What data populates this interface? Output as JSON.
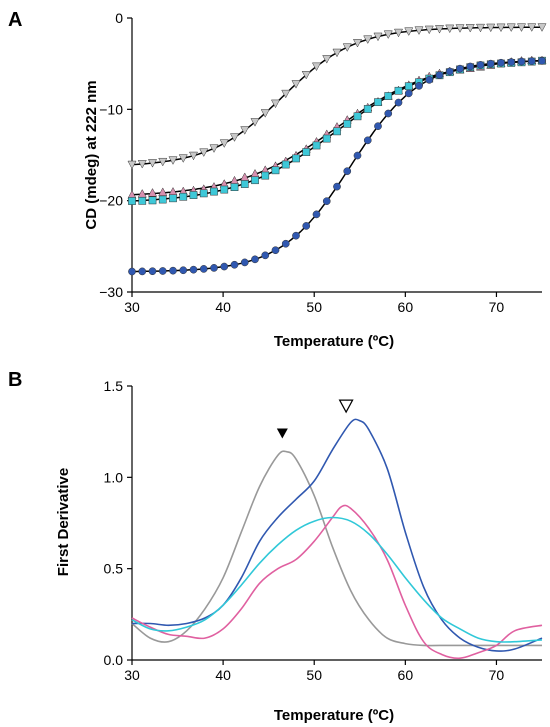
{
  "chart_data": [
    {
      "panel_label": "A",
      "type": "scatter",
      "xlabel": "Temperature (ºC)",
      "ylabel": "CD (mdeg) at 222 nm",
      "xlim": [
        30,
        75
      ],
      "ylim": [
        -30,
        0
      ],
      "xticks": [
        "30",
        "40",
        "50",
        "60",
        "70"
      ],
      "yticks": [
        "0",
        "−10",
        "−20",
        "−30"
      ],
      "grid": false,
      "fit_color": "#000000",
      "series": [
        {
          "marker": "triangle-down",
          "color": "#c8c8c8",
          "fit": {
            "low": -16.3,
            "high": -1.0,
            "tm": 46.5,
            "w": 4.0
          },
          "points": {
            "x_start": 30,
            "x_end": 75,
            "count": 41
          }
        },
        {
          "marker": "triangle-up",
          "color": "#d890b0",
          "fit": {
            "low": -19.6,
            "high": -4.4,
            "tm": 52.5,
            "w": 5.5
          },
          "points": {
            "x_start": 30,
            "x_end": 75,
            "count": 41
          }
        },
        {
          "marker": "square",
          "color": "#3ec8d8",
          "fit": {
            "low": -20.3,
            "high": -4.4,
            "tm": 52.5,
            "w": 5.5
          },
          "points": {
            "x_start": 30,
            "x_end": 75,
            "count": 41
          }
        },
        {
          "marker": "circle",
          "color": "#3058b0",
          "fit": {
            "low": -27.8,
            "high": -4.6,
            "tm": 54.0,
            "w": 3.8
          },
          "points": {
            "x_start": 30,
            "x_end": 75,
            "count": 41
          }
        }
      ]
    },
    {
      "panel_label": "B",
      "type": "line",
      "xlabel": "Temperature (ºC)",
      "ylabel": "First Derivative",
      "xlim": [
        30,
        75
      ],
      "ylim": [
        0,
        1.5
      ],
      "xticks": [
        "30",
        "40",
        "50",
        "60",
        "70"
      ],
      "yticks": [
        "0.0",
        "0.5",
        "1.0",
        "1.5"
      ],
      "grid": false,
      "annotations": [
        {
          "symbol": "▼",
          "x": 46.5,
          "y": 1.24,
          "style": "filled"
        },
        {
          "symbol": "▽",
          "x": 53.5,
          "y": 1.39,
          "style": "open"
        }
      ],
      "series": [
        {
          "color": "#999999",
          "points": [
            [
              30,
              0.2
            ],
            [
              32,
              0.12
            ],
            [
              34,
              0.1
            ],
            [
              36,
              0.16
            ],
            [
              38,
              0.28
            ],
            [
              40,
              0.45
            ],
            [
              42,
              0.7
            ],
            [
              44,
              0.95
            ],
            [
              46,
              1.12
            ],
            [
              47,
              1.14
            ],
            [
              48,
              1.1
            ],
            [
              50,
              0.9
            ],
            [
              52,
              0.62
            ],
            [
              54,
              0.38
            ],
            [
              56,
              0.22
            ],
            [
              58,
              0.12
            ],
            [
              60,
              0.09
            ],
            [
              62,
              0.08
            ],
            [
              65,
              0.08
            ],
            [
              70,
              0.08
            ],
            [
              75,
              0.08
            ]
          ]
        },
        {
          "color": "#3058b0",
          "points": [
            [
              30,
              0.2
            ],
            [
              32,
              0.2
            ],
            [
              34,
              0.19
            ],
            [
              36,
              0.2
            ],
            [
              38,
              0.23
            ],
            [
              40,
              0.3
            ],
            [
              42,
              0.45
            ],
            [
              44,
              0.65
            ],
            [
              46,
              0.78
            ],
            [
              48,
              0.88
            ],
            [
              50,
              0.98
            ],
            [
              52,
              1.15
            ],
            [
              54,
              1.3
            ],
            [
              55,
              1.31
            ],
            [
              56,
              1.26
            ],
            [
              58,
              1.05
            ],
            [
              60,
              0.7
            ],
            [
              62,
              0.4
            ],
            [
              64,
              0.22
            ],
            [
              66,
              0.12
            ],
            [
              68,
              0.07
            ],
            [
              70,
              0.05
            ],
            [
              72,
              0.06
            ],
            [
              75,
              0.12
            ]
          ]
        },
        {
          "color": "#e060a0",
          "points": [
            [
              30,
              0.23
            ],
            [
              32,
              0.18
            ],
            [
              34,
              0.14
            ],
            [
              36,
              0.13
            ],
            [
              38,
              0.12
            ],
            [
              40,
              0.17
            ],
            [
              42,
              0.28
            ],
            [
              44,
              0.42
            ],
            [
              46,
              0.5
            ],
            [
              48,
              0.55
            ],
            [
              50,
              0.65
            ],
            [
              52,
              0.78
            ],
            [
              53,
              0.84
            ],
            [
              54,
              0.83
            ],
            [
              56,
              0.72
            ],
            [
              58,
              0.55
            ],
            [
              60,
              0.3
            ],
            [
              62,
              0.1
            ],
            [
              64,
              0.03
            ],
            [
              66,
              0.01
            ],
            [
              68,
              0.04
            ],
            [
              70,
              0.08
            ],
            [
              72,
              0.16
            ],
            [
              75,
              0.19
            ]
          ]
        },
        {
          "color": "#30c8d8",
          "points": [
            [
              30,
              0.22
            ],
            [
              32,
              0.17
            ],
            [
              34,
              0.16
            ],
            [
              36,
              0.18
            ],
            [
              38,
              0.22
            ],
            [
              40,
              0.3
            ],
            [
              42,
              0.41
            ],
            [
              44,
              0.53
            ],
            [
              46,
              0.63
            ],
            [
              48,
              0.71
            ],
            [
              50,
              0.76
            ],
            [
              52,
              0.78
            ],
            [
              54,
              0.76
            ],
            [
              56,
              0.69
            ],
            [
              58,
              0.58
            ],
            [
              60,
              0.45
            ],
            [
              62,
              0.33
            ],
            [
              64,
              0.23
            ],
            [
              66,
              0.17
            ],
            [
              68,
              0.12
            ],
            [
              70,
              0.1
            ],
            [
              72,
              0.1
            ],
            [
              75,
              0.11
            ]
          ]
        }
      ]
    }
  ]
}
